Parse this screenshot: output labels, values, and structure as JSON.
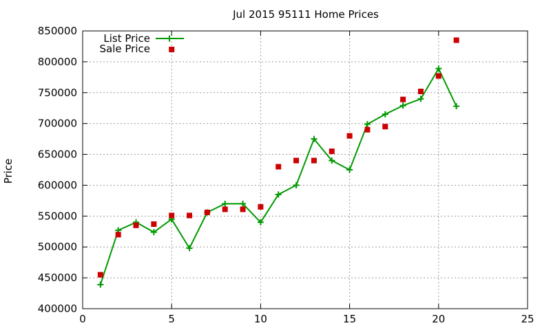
{
  "chart_data": {
    "type": "line",
    "title": "Jul 2015 95111 Home Prices",
    "xlabel": "",
    "ylabel": "Price",
    "xlim": [
      0,
      25
    ],
    "ylim": [
      400000,
      850000
    ],
    "x_ticks": [
      0,
      5,
      10,
      15,
      20,
      25
    ],
    "y_ticks": [
      400000,
      450000,
      500000,
      550000,
      600000,
      650000,
      700000,
      750000,
      800000,
      850000
    ],
    "grid": true,
    "legend_position": "top-left",
    "series": [
      {
        "name": "List Price",
        "style": "line-with-plus-markers",
        "color": "#009900",
        "x": [
          1,
          2,
          3,
          4,
          5,
          6,
          7,
          8,
          9,
          10,
          11,
          12,
          13,
          14,
          15,
          16,
          17,
          18,
          19,
          20,
          21
        ],
        "values": [
          439000,
          527000,
          540000,
          524000,
          545000,
          498000,
          556000,
          570000,
          570000,
          540000,
          585000,
          600000,
          675000,
          640000,
          625000,
          699000,
          715000,
          729000,
          740000,
          789000,
          728000
        ]
      },
      {
        "name": "Sale Price",
        "style": "square-markers",
        "color": "#cc0000",
        "x": [
          1,
          2,
          3,
          4,
          5,
          6,
          7,
          8,
          9,
          10,
          11,
          12,
          13,
          14,
          15,
          16,
          17,
          18,
          19,
          20,
          21
        ],
        "values": [
          455000,
          520000,
          535000,
          537000,
          551000,
          551000,
          556000,
          561000,
          561000,
          565000,
          630000,
          640000,
          640000,
          655000,
          680000,
          690000,
          695000,
          739000,
          752000,
          777000,
          835000
        ]
      }
    ],
    "legend_extra_marker": {
      "series": 1,
      "x": 5,
      "y": 820000
    }
  }
}
